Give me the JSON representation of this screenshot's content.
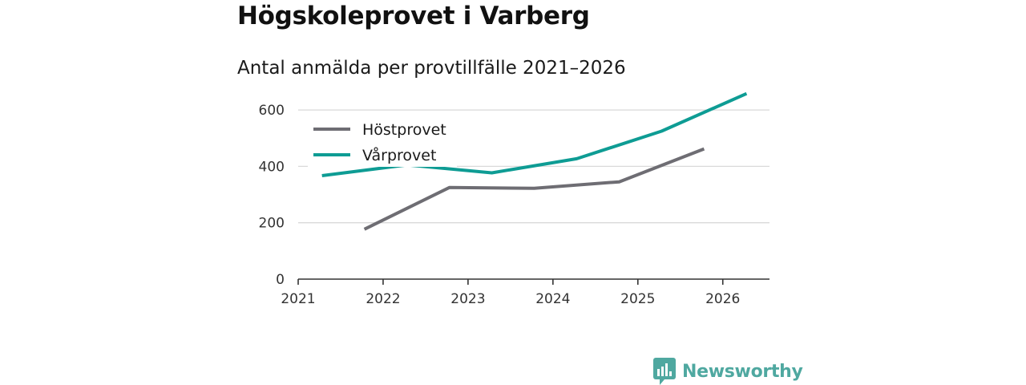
{
  "title": "Högskoleprovet i Varberg",
  "subtitle": "Antal anmälda per provtillfälle 2021–2026",
  "brand": {
    "name": "Newsworthy",
    "icon": "newsworthy-logo-icon",
    "color": "#4fa8a0"
  },
  "chart_data": {
    "type": "line",
    "title": "Högskoleprovet i Varberg",
    "subtitle": "Antal anmälda per provtillfälle 2021–2026",
    "xlabel": "",
    "ylabel": "",
    "xlim": [
      2021,
      2026.55
    ],
    "ylim": [
      0,
      660
    ],
    "x_ticks": [
      2021,
      2022,
      2023,
      2024,
      2025,
      2026
    ],
    "y_ticks": [
      0,
      200,
      400,
      600
    ],
    "grid": true,
    "legend_position": "top-left",
    "series": [
      {
        "name": "Höstprovet",
        "color": "#6e6d73",
        "x": [
          2021.78,
          2022.78,
          2023.78,
          2024.78,
          2025.78
        ],
        "values": [
          177,
          325,
          322,
          345,
          462
        ]
      },
      {
        "name": "Vårprovet",
        "color": "#0e9c94",
        "x": [
          2021.28,
          2022.28,
          2023.28,
          2024.28,
          2025.28,
          2026.28
        ],
        "values": [
          367,
          405,
          377,
          427,
          525,
          658
        ]
      }
    ]
  }
}
